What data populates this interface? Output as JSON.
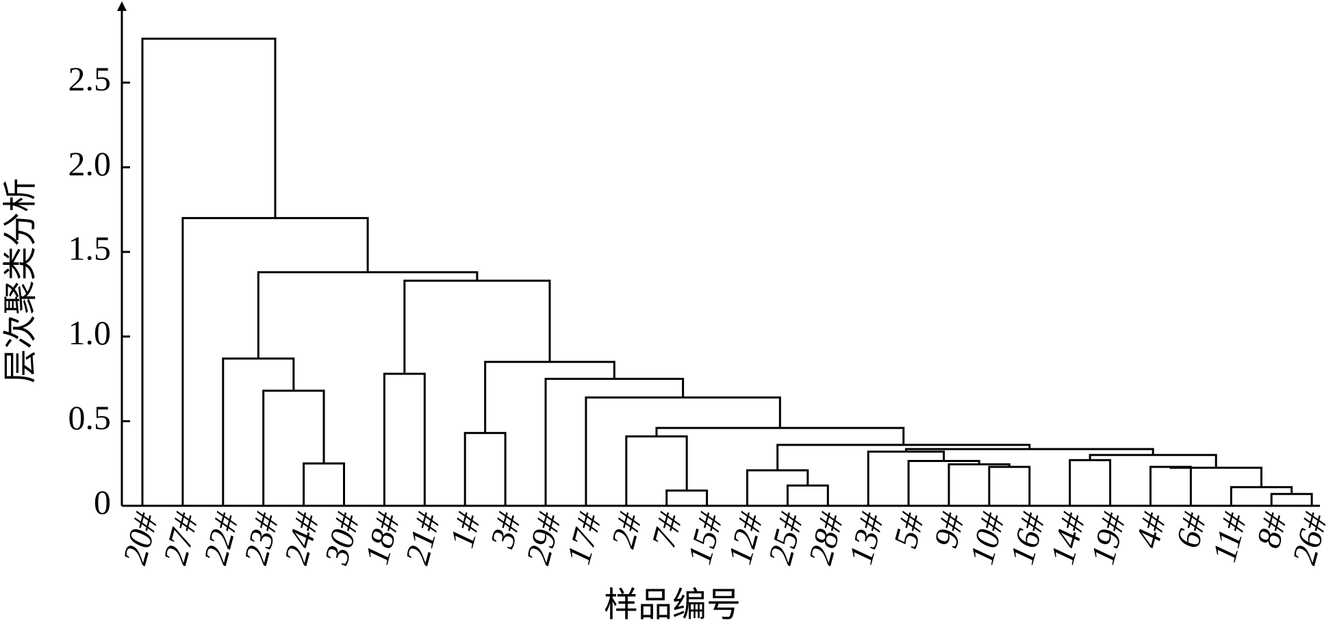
{
  "chart_data": {
    "type": "dendrogram",
    "xlabel": "样品编号",
    "ylabel": "层次聚类分析",
    "categories": [
      "20#",
      "27#",
      "22#",
      "23#",
      "24#",
      "30#",
      "18#",
      "21#",
      "1#",
      "3#",
      "29#",
      "17#",
      "2#",
      "7#",
      "15#",
      "12#",
      "25#",
      "28#",
      "13#",
      "5#",
      "9#",
      "10#",
      "16#",
      "14#",
      "19#",
      "4#",
      "6#",
      "11#",
      "8#",
      "26#"
    ],
    "merges": [
      [
        4,
        5,
        0.25
      ],
      [
        3,
        30,
        0.68
      ],
      [
        2,
        31,
        0.87
      ],
      [
        6,
        7,
        0.78
      ],
      [
        8,
        9,
        0.43
      ],
      [
        13,
        14,
        0.09
      ],
      [
        12,
        35,
        0.41
      ],
      [
        16,
        17,
        0.12
      ],
      [
        15,
        37,
        0.21
      ],
      [
        28,
        29,
        0.07
      ],
      [
        27,
        39,
        0.11
      ],
      [
        25,
        26,
        0.23
      ],
      [
        41,
        40,
        0.225
      ],
      [
        23,
        24,
        0.27
      ],
      [
        43,
        42,
        0.3
      ],
      [
        21,
        22,
        0.23
      ],
      [
        20,
        45,
        0.245
      ],
      [
        19,
        46,
        0.265
      ],
      [
        18,
        47,
        0.32
      ],
      [
        48,
        44,
        0.335
      ],
      [
        38,
        49,
        0.36
      ],
      [
        36,
        50,
        0.46
      ],
      [
        11,
        51,
        0.64
      ],
      [
        10,
        52,
        0.75
      ],
      [
        34,
        53,
        0.85
      ],
      [
        33,
        54,
        1.33
      ],
      [
        32,
        55,
        1.38
      ],
      [
        1,
        56,
        1.7
      ],
      [
        0,
        57,
        2.76
      ]
    ],
    "ylim": [
      0,
      2.95
    ],
    "yticks": [
      0,
      0.5,
      {
        "value": 1,
        "label": "1.0"
      },
      0.5,
      {
        "value": 1.5,
        "label": "1.5"
      },
      {
        "value": 2,
        "label": "2.0"
      },
      2.5
    ],
    "color": "#000000"
  }
}
